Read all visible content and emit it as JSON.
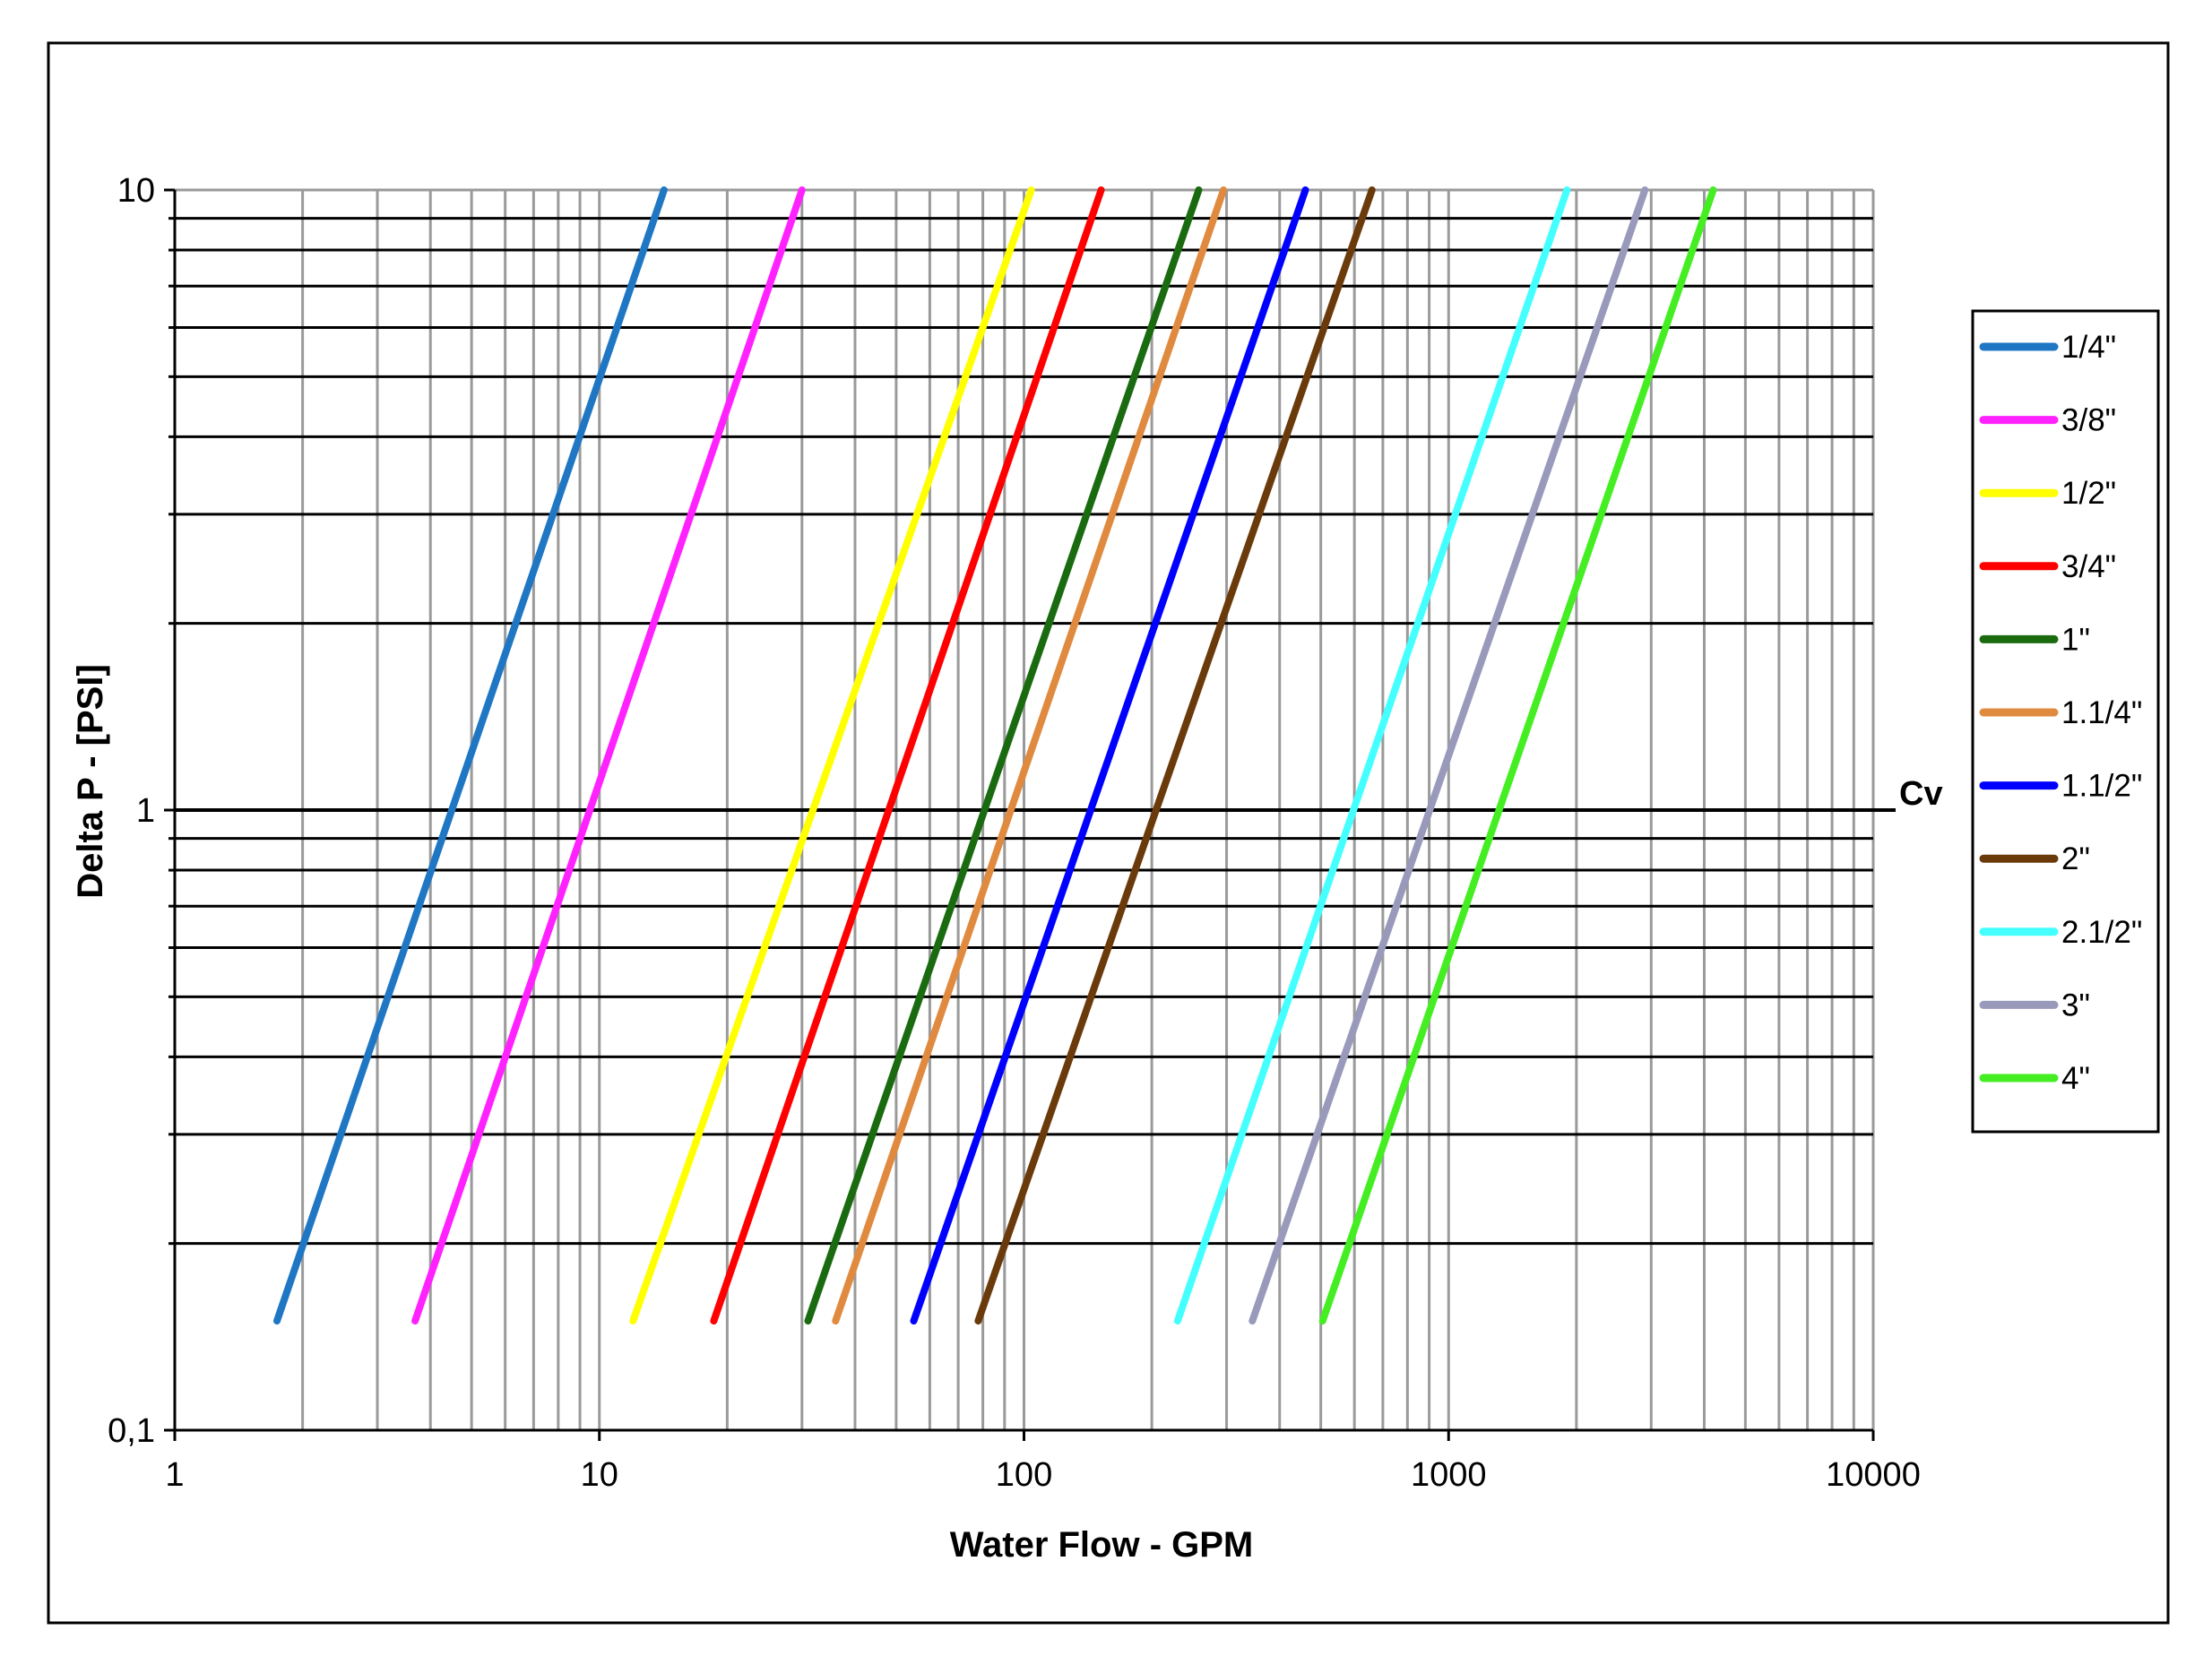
{
  "chart_data": {
    "type": "line",
    "title": "",
    "xlabel": "Water Flow - GPM",
    "ylabel": "Delta P - [PSI]",
    "x_scale": "log",
    "y_scale": "log",
    "xlim": [
      1,
      10000
    ],
    "ylim": [
      0.1,
      10
    ],
    "x_tick_labels": [
      "1",
      "10",
      "100",
      "1000",
      "10000"
    ],
    "y_tick_labels": [
      "0,1",
      "1",
      "10"
    ],
    "grid": true,
    "legend_position": "right",
    "reference_line": {
      "y": 1,
      "label": "Cv"
    },
    "series": [
      {
        "name": "1/4\"",
        "color": "#1f77c4",
        "cv": 4.5,
        "x": [
          1.74,
          14.2
        ],
        "y": [
          0.15,
          10
        ]
      },
      {
        "name": "3/8\"",
        "color": "#ff22ff",
        "cv": 9.5,
        "x": [
          3.68,
          30
        ],
        "y": [
          0.15,
          10
        ]
      },
      {
        "name": "1/2\"",
        "color": "#ffff00",
        "cv": 31,
        "x": [
          12.0,
          104
        ],
        "y": [
          0.15,
          10
        ]
      },
      {
        "name": "3/4\"",
        "color": "#ff0000",
        "cv": 48,
        "x": [
          18.6,
          152
        ],
        "y": [
          0.15,
          10
        ]
      },
      {
        "name": "1\"",
        "color": "#1a6b10",
        "cv": 80,
        "x": [
          31.0,
          258
        ],
        "y": [
          0.15,
          10
        ]
      },
      {
        "name": "1.1/4\"",
        "color": "#e08a40",
        "cv": 95,
        "x": [
          36.0,
          295
        ],
        "y": [
          0.15,
          10
        ]
      },
      {
        "name": "1.1/2\"",
        "color": "#0000ff",
        "cv": 145,
        "x": [
          55.0,
          460
        ],
        "y": [
          0.15,
          10
        ]
      },
      {
        "name": "2\"",
        "color": "#6b3a0a",
        "cv": 200,
        "x": [
          78.0,
          660
        ],
        "y": [
          0.15,
          10
        ]
      },
      {
        "name": "2.1/2\"",
        "color": "#44ffff",
        "cv": 580,
        "x": [
          230,
          1900
        ],
        "y": [
          0.15,
          10
        ]
      },
      {
        "name": "3\"",
        "color": "#9999bb",
        "cv": 900,
        "x": [
          345,
          2900
        ],
        "y": [
          0.15,
          10
        ]
      },
      {
        "name": "4\"",
        "color": "#44ee22",
        "cv": 1300,
        "x": [
          505,
          4200
        ],
        "y": [
          0.15,
          10
        ]
      }
    ]
  }
}
